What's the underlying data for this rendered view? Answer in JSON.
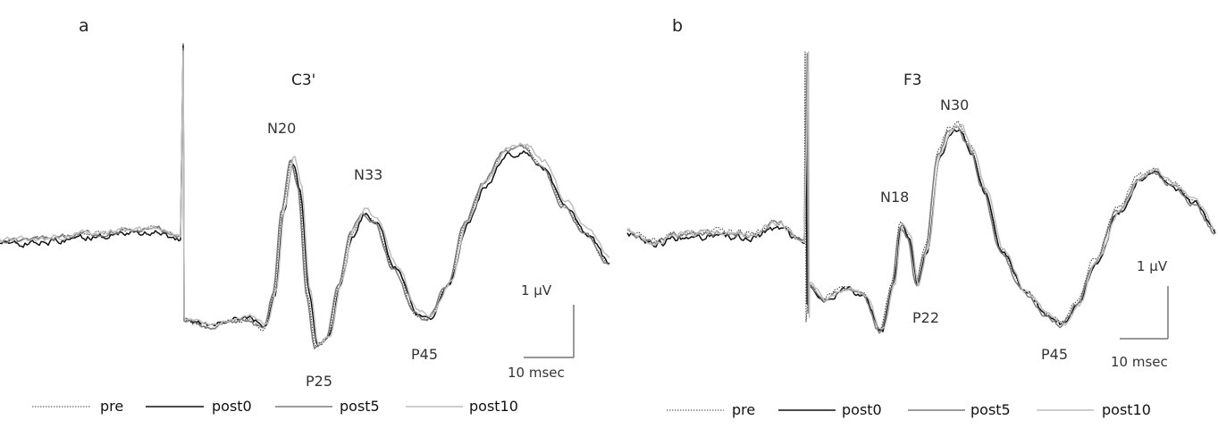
{
  "chart_data": [
    {
      "type": "line",
      "panel": "a",
      "electrode": "C3'",
      "series": [
        {
          "name": "pre",
          "style": "dotted",
          "color": "#444444"
        },
        {
          "name": "post0",
          "style": "solid",
          "color": "#111111"
        },
        {
          "name": "post5",
          "style": "solid",
          "color": "#7a7a7a"
        },
        {
          "name": "post10",
          "style": "solid",
          "color": "#bdbdbd"
        }
      ],
      "peaks": [
        {
          "label": "N20",
          "polarity": "negative"
        },
        {
          "label": "P25",
          "polarity": "positive"
        },
        {
          "label": "N33",
          "polarity": "negative"
        },
        {
          "label": "P45",
          "polarity": "positive"
        }
      ],
      "scale": {
        "amplitude": "1 μV",
        "time": "10 msec"
      }
    },
    {
      "type": "line",
      "panel": "b",
      "electrode": "F3",
      "series": [
        {
          "name": "pre",
          "style": "dotted",
          "color": "#444444"
        },
        {
          "name": "post0",
          "style": "solid",
          "color": "#111111"
        },
        {
          "name": "post5",
          "style": "solid",
          "color": "#7a7a7a"
        },
        {
          "name": "post10",
          "style": "solid",
          "color": "#bdbdbd"
        }
      ],
      "peaks": [
        {
          "label": "N18",
          "polarity": "negative"
        },
        {
          "label": "P22",
          "polarity": "positive"
        },
        {
          "label": "N30",
          "polarity": "negative"
        },
        {
          "label": "P45",
          "polarity": "positive"
        }
      ],
      "scale": {
        "amplitude": "1 μV",
        "time": "10 msec"
      }
    }
  ]
}
